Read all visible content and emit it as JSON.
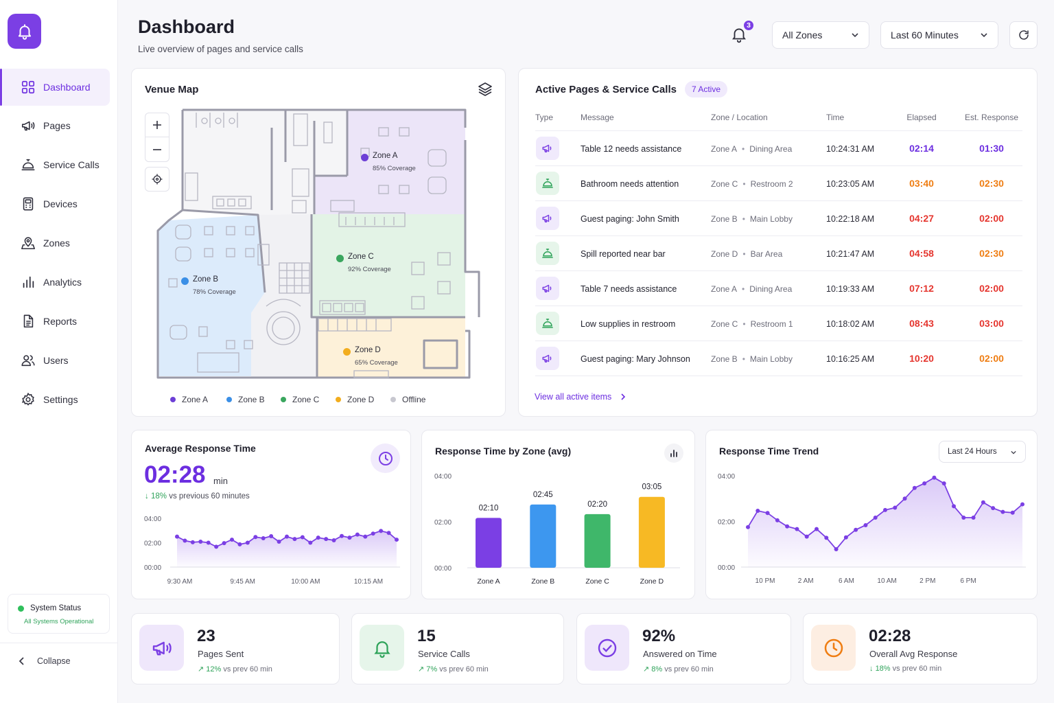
{
  "header": {
    "title": "Dashboard",
    "subtitle": "Live overview of pages and service calls",
    "notification_count": "3",
    "zone_filter": "All Zones",
    "time_filter": "Last 60 Minutes"
  },
  "sidebar": {
    "items": [
      {
        "label": "Dashboard",
        "icon": "grid-icon",
        "active": true
      },
      {
        "label": "Pages",
        "icon": "megaphone-icon"
      },
      {
        "label": "Service Calls",
        "icon": "service-bell-icon"
      },
      {
        "label": "Devices",
        "icon": "device-icon"
      },
      {
        "label": "Zones",
        "icon": "map-pin-icon"
      },
      {
        "label": "Analytics",
        "icon": "bar-chart-icon"
      },
      {
        "label": "Reports",
        "icon": "document-icon"
      },
      {
        "label": "Users",
        "icon": "users-icon"
      },
      {
        "label": "Settings",
        "icon": "gear-icon"
      }
    ],
    "status_title": "System Status",
    "status_text": "All Systems Operational",
    "collapse_label": "Collapse"
  },
  "venue_map": {
    "title": "Venue Map",
    "zones": [
      {
        "name": "Zone A",
        "coverage": "85% Coverage",
        "color": "#6d3fd6"
      },
      {
        "name": "Zone B",
        "coverage": "78% Coverage",
        "color": "#3b8fe6"
      },
      {
        "name": "Zone C",
        "coverage": "92% Coverage",
        "color": "#3aa65e"
      },
      {
        "name": "Zone D",
        "coverage": "65% Coverage",
        "color": "#f2ad1e"
      }
    ],
    "legend": [
      {
        "label": "Zone A",
        "color": "#6d3fd6"
      },
      {
        "label": "Zone B",
        "color": "#3b8fe6"
      },
      {
        "label": "Zone C",
        "color": "#3aa65e"
      },
      {
        "label": "Zone D",
        "color": "#f2ad1e"
      },
      {
        "label": "Offline",
        "color": "#c8c8d0"
      }
    ]
  },
  "active": {
    "title": "Active Pages & Service Calls",
    "badge": "7 Active",
    "columns": [
      "Type",
      "Message",
      "Zone / Location",
      "Time",
      "Elapsed",
      "Est. Response"
    ],
    "rows": [
      {
        "type": "page",
        "message": "Table 12 needs assistance",
        "zone": "Zone A",
        "location": "Dining Area",
        "time": "10:24:31 AM",
        "elapsed": "02:14",
        "est": "01:30",
        "elapsed_color": "#6c2ee0",
        "est_color": "#6c2ee0"
      },
      {
        "type": "service",
        "message": "Bathroom needs attention",
        "zone": "Zone C",
        "location": "Restroom 2",
        "time": "10:23:05 AM",
        "elapsed": "03:40",
        "est": "02:30",
        "elapsed_color": "#ef7d12",
        "est_color": "#ef7d12"
      },
      {
        "type": "page",
        "message": "Guest paging: John Smith",
        "zone": "Zone B",
        "location": "Main Lobby",
        "time": "10:22:18 AM",
        "elapsed": "04:27",
        "est": "02:00",
        "elapsed_color": "#e5352e",
        "est_color": "#e5352e"
      },
      {
        "type": "service",
        "message": "Spill reported near bar",
        "zone": "Zone D",
        "location": "Bar Area",
        "time": "10:21:47 AM",
        "elapsed": "04:58",
        "est": "02:30",
        "elapsed_color": "#e5352e",
        "est_color": "#ef7d12"
      },
      {
        "type": "page",
        "message": "Table 7 needs assistance",
        "zone": "Zone A",
        "location": "Dining Area",
        "time": "10:19:33 AM",
        "elapsed": "07:12",
        "est": "02:00",
        "elapsed_color": "#e5352e",
        "est_color": "#e5352e"
      },
      {
        "type": "service",
        "message": "Low supplies in restroom",
        "zone": "Zone C",
        "location": "Restroom 1",
        "time": "10:18:02 AM",
        "elapsed": "08:43",
        "est": "03:00",
        "elapsed_color": "#e5352e",
        "est_color": "#e5352e"
      },
      {
        "type": "page",
        "message": "Guest paging: Mary Johnson",
        "zone": "Zone B",
        "location": "Main Lobby",
        "time": "10:16:25 AM",
        "elapsed": "10:20",
        "est": "02:00",
        "elapsed_color": "#e5352e",
        "est_color": "#ef7d12"
      }
    ],
    "view_all": "View all active items"
  },
  "avg_response": {
    "title": "Average Response Time",
    "value": "02:28",
    "unit": "min",
    "change": "18%",
    "change_text": "vs previous 60 minutes"
  },
  "by_zone": {
    "title": "Response Time by Zone (avg)"
  },
  "trend": {
    "title": "Response Time Trend",
    "filter": "Last 24 Hours"
  },
  "kpis": [
    {
      "value": "23",
      "label": "Pages Sent",
      "change": "12%",
      "change_text": "vs prev 60 min",
      "icon": "megaphone-icon",
      "bg": "#efe7fb",
      "color": "#7b3fe4",
      "arrow": "↗"
    },
    {
      "value": "15",
      "label": "Service Calls",
      "change": "7%",
      "change_text": "vs prev 60 min",
      "icon": "service-bell-icon",
      "bg": "#e6f5ea",
      "color": "#2fa35a",
      "arrow": "↗"
    },
    {
      "value": "92%",
      "label": "Answered on Time",
      "change": "8%",
      "change_text": "vs prev 60 min",
      "icon": "check-circle-icon",
      "bg": "#efe7fb",
      "color": "#7b3fe4",
      "arrow": "↗"
    },
    {
      "value": "02:28",
      "label": "Overall Avg Response",
      "change": "18%",
      "change_text": "vs prev 60 min",
      "icon": "clock-icon",
      "bg": "#fdeee2",
      "color": "#ef7d12",
      "arrow": "↓"
    }
  ],
  "chart_data": [
    {
      "type": "area",
      "title": "Average Response Time",
      "y_ticks": [
        "04:00",
        "02:00",
        "00:00"
      ],
      "ylim": [
        0,
        240
      ],
      "x_ticks": [
        "9:30 AM",
        "9:45 AM",
        "10:00 AM",
        "10:15 AM"
      ],
      "values": [
        150,
        130,
        122,
        125,
        120,
        100,
        118,
        135,
        112,
        120,
        148,
        142,
        152,
        125,
        150,
        138,
        147,
        120,
        145,
        138,
        132,
        153,
        145,
        160,
        150,
        165,
        178,
        168,
        135
      ],
      "color": "#7b3fe4"
    },
    {
      "type": "bar",
      "title": "Response Time by Zone (avg)",
      "categories": [
        "Zone A",
        "Zone B",
        "Zone C",
        "Zone D"
      ],
      "values": [
        130,
        165,
        140,
        185
      ],
      "labels": [
        "02:10",
        "02:45",
        "02:20",
        "03:05"
      ],
      "colors": [
        "#7b3fe4",
        "#3d97ef",
        "#3fb76a",
        "#f7b924"
      ],
      "y_ticks": [
        "04:00",
        "02:00",
        "00:00"
      ],
      "ylim": [
        0,
        240
      ]
    },
    {
      "type": "area",
      "title": "Response Time Trend",
      "y_ticks": [
        "04:00",
        "02:00",
        "00:00"
      ],
      "ylim": [
        0,
        240
      ],
      "x_ticks": [
        "10 PM",
        "2 AM",
        "6 AM",
        "10 AM",
        "2 PM",
        "6 PM"
      ],
      "values": [
        105,
        148,
        142,
        123,
        107,
        100,
        80,
        100,
        77,
        47,
        78,
        98,
        110,
        130,
        150,
        156,
        180,
        208,
        220,
        235,
        220,
        160,
        130,
        130,
        170,
        155,
        145,
        143,
        165
      ],
      "color": "#7b3fe4"
    }
  ]
}
